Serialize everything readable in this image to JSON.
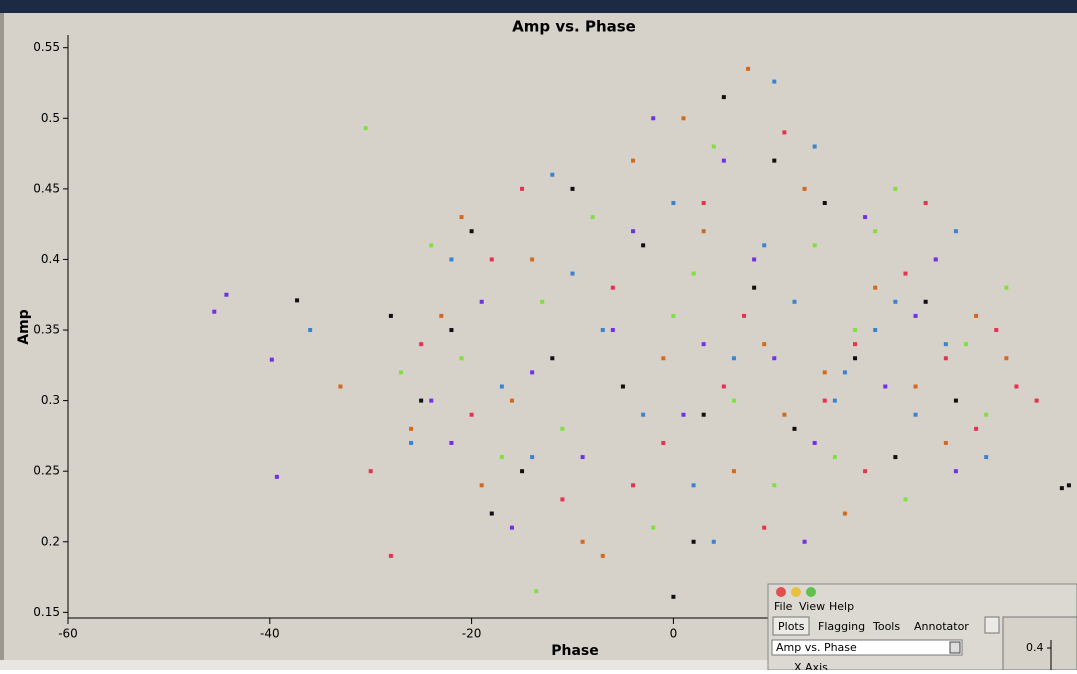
{
  "chart_data": {
    "type": "scatter",
    "title": "Amp vs. Phase",
    "x_label": "Phase",
    "y_label": "Amp",
    "xlim": [
      -60,
      40
    ],
    "ylim": [
      0.146,
      0.559
    ],
    "xticks": [
      -60,
      -40,
      -20,
      0
    ],
    "yticks": [
      0.15,
      0.2,
      0.25,
      0.3,
      0.35,
      0.4,
      0.45,
      0.5,
      0.55
    ],
    "series": [
      {
        "color": "#101010",
        "x": [
          -37.3,
          -28,
          -25,
          -20,
          -15,
          -10,
          -5,
          0,
          2,
          5,
          8,
          12,
          15,
          18,
          22,
          25,
          -22,
          -18,
          -3,
          10,
          38.5,
          39.2,
          -12,
          3,
          28
        ],
        "values": [
          0.371,
          0.36,
          0.3,
          0.42,
          0.25,
          0.45,
          0.31,
          0.161,
          0.2,
          0.515,
          0.38,
          0.28,
          0.44,
          0.33,
          0.26,
          0.37,
          0.35,
          0.22,
          0.41,
          0.47,
          0.238,
          0.24,
          0.33,
          0.29,
          0.3
        ]
      },
      {
        "color": "#d2691e",
        "x": [
          -33,
          -26,
          -23,
          -19,
          -14,
          -9,
          -4,
          -1,
          3,
          6,
          9,
          13,
          17,
          20,
          24,
          27,
          30,
          -16,
          -7,
          1,
          11,
          7.4,
          -21,
          15,
          33
        ],
        "values": [
          0.31,
          0.28,
          0.36,
          0.24,
          0.4,
          0.2,
          0.47,
          0.33,
          0.42,
          0.25,
          0.34,
          0.45,
          0.22,
          0.38,
          0.31,
          0.27,
          0.36,
          0.3,
          0.19,
          0.5,
          0.29,
          0.535,
          0.43,
          0.32,
          0.33
        ]
      },
      {
        "color": "#80e040",
        "x": [
          -30.5,
          -24,
          -21,
          -17,
          -13,
          -8,
          -2,
          2,
          6,
          10,
          14,
          18,
          22,
          26,
          29,
          33,
          -27,
          -11,
          4,
          16,
          23,
          31,
          -13.6,
          0,
          20
        ],
        "values": [
          0.493,
          0.41,
          0.33,
          0.26,
          0.37,
          0.43,
          0.21,
          0.39,
          0.3,
          0.24,
          0.41,
          0.35,
          0.45,
          0.4,
          0.34,
          0.38,
          0.32,
          0.28,
          0.48,
          0.26,
          0.23,
          0.29,
          0.165,
          0.36,
          0.42
        ]
      },
      {
        "color": "#e8304f",
        "x": [
          -28,
          -25,
          -20,
          -15,
          -11,
          -6,
          -1,
          3,
          7,
          11,
          15,
          19,
          23,
          27,
          30,
          34,
          36,
          -18,
          -4,
          9,
          25,
          32,
          -30,
          5,
          18
        ],
        "values": [
          0.19,
          0.34,
          0.29,
          0.45,
          0.23,
          0.38,
          0.27,
          0.44,
          0.36,
          0.49,
          0.3,
          0.25,
          0.39,
          0.33,
          0.28,
          0.31,
          0.3,
          0.4,
          0.24,
          0.21,
          0.44,
          0.35,
          0.25,
          0.31,
          0.34
        ]
      },
      {
        "color": "#7030e8",
        "x": [
          -45.5,
          -44.3,
          -39.8,
          -39.3,
          -24,
          -19,
          -14,
          -9,
          -4,
          1,
          5,
          10,
          14,
          19,
          24,
          28,
          -16,
          -6,
          8,
          21,
          13,
          -2,
          26,
          -22,
          3
        ],
        "values": [
          0.363,
          0.375,
          0.329,
          0.246,
          0.3,
          0.37,
          0.32,
          0.26,
          0.42,
          0.29,
          0.47,
          0.33,
          0.27,
          0.43,
          0.36,
          0.25,
          0.21,
          0.35,
          0.4,
          0.31,
          0.2,
          0.5,
          0.4,
          0.27,
          0.34
        ]
      },
      {
        "color": "#3c82d0",
        "x": [
          -36,
          -26,
          -22,
          -17,
          -12,
          -7,
          -3,
          2,
          6,
          9,
          12,
          16,
          20,
          24,
          28,
          31,
          -10,
          0,
          14,
          22,
          10,
          4,
          -14,
          17,
          27
        ],
        "values": [
          0.35,
          0.27,
          0.4,
          0.31,
          0.46,
          0.35,
          0.29,
          0.24,
          0.33,
          0.41,
          0.37,
          0.3,
          0.35,
          0.29,
          0.42,
          0.26,
          0.39,
          0.44,
          0.48,
          0.37,
          0.526,
          0.2,
          0.26,
          0.32,
          0.34
        ]
      }
    ]
  },
  "window": {
    "menu": [
      "File",
      "View",
      "Help"
    ],
    "tabs": [
      "Plots",
      "Flagging",
      "Tools",
      "Annotator"
    ],
    "dropdown": "Amp vs. Phase",
    "section": "X Axis",
    "mini_tick": "0.4"
  }
}
